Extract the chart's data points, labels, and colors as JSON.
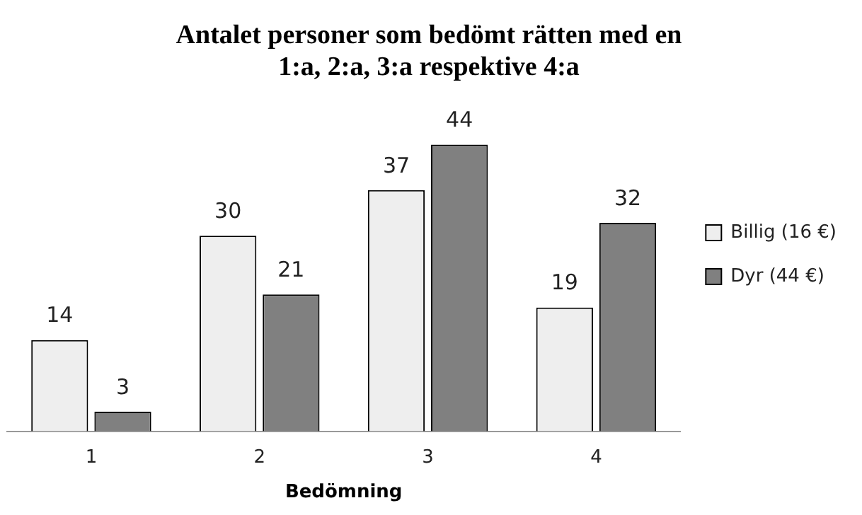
{
  "chart_data": {
    "type": "bar",
    "title": "Antalet personer som bedömt rätten med en 1:a, 2:a, 3:a respektive 4:a",
    "xlabel": "Bedömning",
    "categories": [
      "1",
      "2",
      "3",
      "4"
    ],
    "series": [
      {
        "name": "Billig (16 €)",
        "color": "#eeeeee",
        "values": [
          14,
          30,
          37,
          19
        ]
      },
      {
        "name": "Dyr (44 €)",
        "color": "#808080",
        "values": [
          3,
          21,
          44,
          32
        ]
      }
    ],
    "data_labels": true,
    "legend": "right",
    "grid": false
  }
}
